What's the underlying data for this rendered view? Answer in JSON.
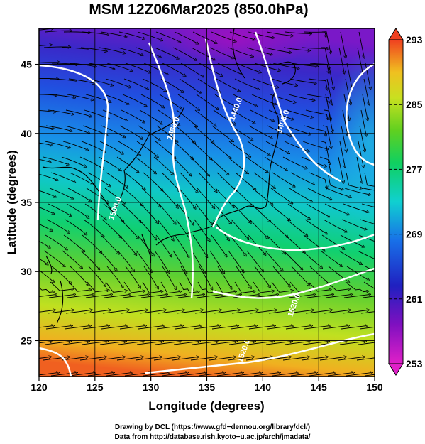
{
  "title": "MSM 12Z06Mar2025 (850.0hPa)",
  "x_axis": {
    "label": "Longitude (degrees)",
    "range": [
      120,
      150
    ],
    "ticks": [
      "120",
      "125",
      "130",
      "135",
      "140",
      "145",
      "150"
    ]
  },
  "y_axis": {
    "label": "Latitude  (degrees)",
    "range": [
      22.4,
      47.6
    ],
    "ticks": [
      "25",
      "30",
      "35",
      "40",
      "45"
    ]
  },
  "colorbar": {
    "min": 253,
    "max": 293,
    "ticks": [
      "253",
      "261",
      "269",
      "277",
      "285",
      "293"
    ]
  },
  "contours": [
    {
      "label": "1480.0",
      "lon": 132.2,
      "lat": 40.3
    },
    {
      "label": "1440.0",
      "lon": 137.8,
      "lat": 41.7
    },
    {
      "label": "1400.0",
      "lon": 142.0,
      "lat": 40.8
    },
    {
      "label": "1500.0",
      "lon": 127.0,
      "lat": 34.5
    },
    {
      "label": "1520.0",
      "lon": 143.0,
      "lat": 27.5
    },
    {
      "label": "1520.0",
      "lon": 138.5,
      "lat": 24.2
    }
  ],
  "credits": {
    "line1": "Drawing by DCL (https://www.gfd−dennou.org/library/dcl/)",
    "line2": "Data from http://database.rish.kyoto−u.ac.jp/arch/jmadata/"
  }
}
